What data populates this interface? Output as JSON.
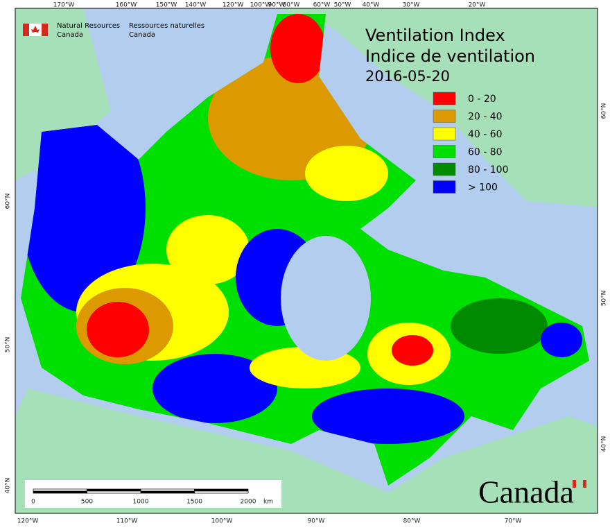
{
  "header": {
    "org_en": [
      "Natural Resources",
      "Canada"
    ],
    "org_fr": [
      "Ressources naturelles",
      "Canada"
    ]
  },
  "title": [
    "Ventilation Index",
    "Indice de ventilation",
    "2016-05-20"
  ],
  "legend": [
    {
      "label": "0 - 20",
      "color": "#ff0000"
    },
    {
      "label": "20 - 40",
      "color": "#dc9a00"
    },
    {
      "label": "40 - 60",
      "color": "#ffff00"
    },
    {
      "label": "60 - 80",
      "color": "#00e000"
    },
    {
      "label": "80 - 100",
      "color": "#008a00"
    },
    {
      "label": "> 100",
      "color": "#0000ff"
    }
  ],
  "top_labels": [
    "170°W",
    "160°W",
    "150°W",
    "140°W",
    "120°W",
    "100°W",
    "90°W",
    "80°W",
    "60°W",
    "50°W",
    "40°W",
    "30°W",
    "20°W"
  ],
  "bottom_labels": [
    "120°W",
    "110°W",
    "100°W",
    "90°W",
    "80°W",
    "70°W"
  ],
  "left_labels": [
    "60°N",
    "50°N",
    "40°N"
  ],
  "right_labels": [
    "60°N",
    "50°N",
    "40°N"
  ],
  "scale_bar": {
    "ticks": [
      0,
      500,
      1000,
      1500,
      2000
    ],
    "unit": "km"
  },
  "wordmark": "Canada"
}
